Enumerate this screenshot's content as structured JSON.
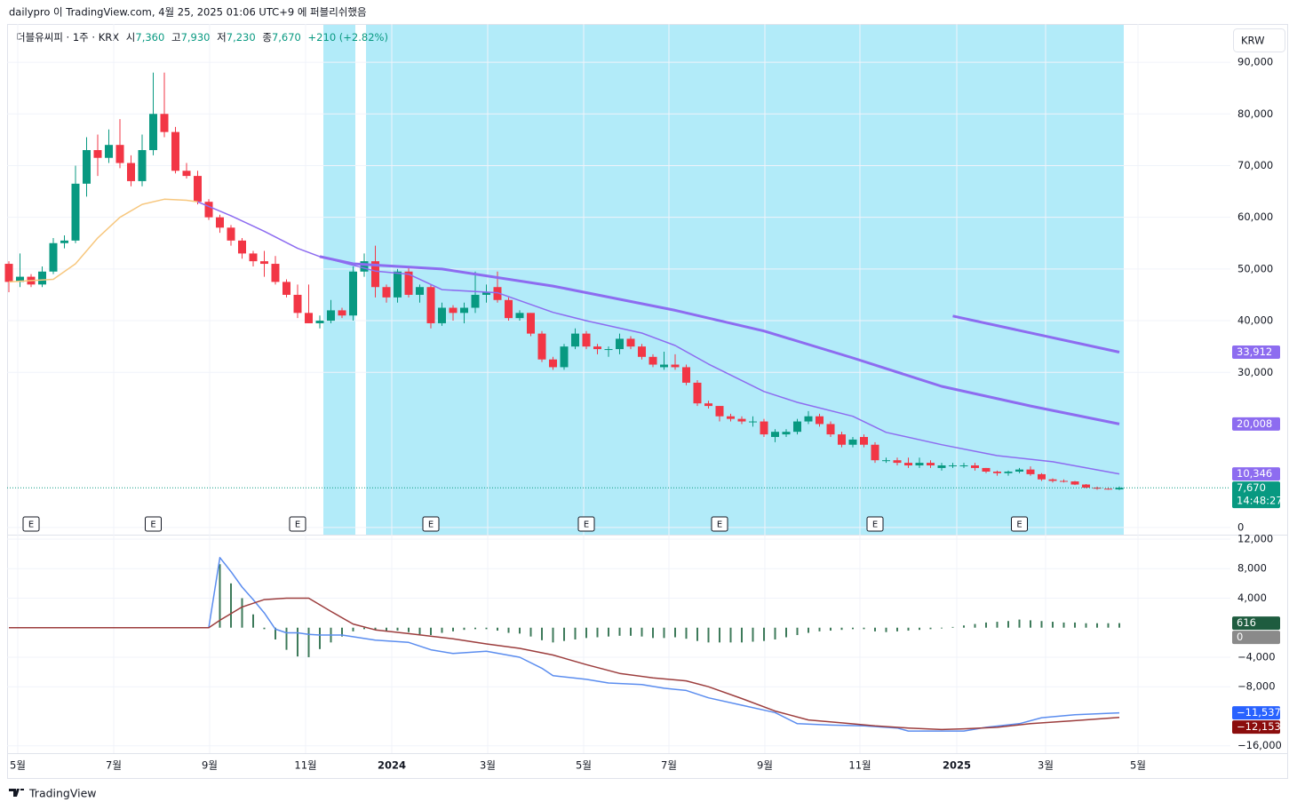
{
  "header": {
    "publisher": "dailypro 이 TradingView.com, 4월 25, 2025 01:06 UTC+9 에 퍼블리쉬했음",
    "symbol": "더블유씨피 · 1주 · KRX",
    "ohlc": [
      {
        "label": "시",
        "value": "7,360"
      },
      {
        "label": "고",
        "value": "7,930"
      },
      {
        "label": "저",
        "value": "7,230"
      },
      {
        "label": "종",
        "value": "7,670"
      }
    ],
    "change": "+210 (+2.82%)",
    "currency": "KRW"
  },
  "chart_data": [
    {
      "type": "candlestick",
      "up_color": "#089981",
      "down_color": "#f23645",
      "xlim": [
        -0.16,
        110
      ],
      "ylim": [
        -1400,
        97400
      ],
      "yticks": [
        {
          "value": 90000,
          "label": "90,000"
        },
        {
          "value": 80000,
          "label": "80,000"
        },
        {
          "value": 70000,
          "label": "70,000"
        },
        {
          "value": 60000,
          "label": "60,000"
        },
        {
          "value": 50000,
          "label": "50,000"
        },
        {
          "value": 40000,
          "label": "40,000"
        },
        {
          "value": 30000,
          "label": "30,000"
        },
        0
      ],
      "candles": [
        [
          51000,
          51500,
          45500,
          47500
        ],
        [
          47500,
          53000,
          46500,
          48500
        ],
        [
          48500,
          49000,
          46500,
          47000
        ],
        [
          47000,
          50500,
          46500,
          49500
        ],
        [
          49500,
          56000,
          49000,
          55000
        ],
        [
          55000,
          56500,
          54000,
          55500
        ],
        [
          55500,
          70000,
          55000,
          66500
        ],
        [
          66500,
          75500,
          64000,
          73000
        ],
        [
          73000,
          76000,
          68000,
          71500
        ],
        [
          71500,
          77000,
          70500,
          74000
        ],
        [
          74000,
          79000,
          69500,
          70500
        ],
        [
          70500,
          72000,
          66000,
          67000
        ],
        [
          67000,
          76000,
          66000,
          73000
        ],
        [
          73000,
          88000,
          72000,
          80000
        ],
        [
          80000,
          88000,
          75500,
          76500
        ],
        [
          76500,
          77500,
          68500,
          69000
        ],
        [
          69000,
          70500,
          67500,
          68000
        ],
        [
          68000,
          69000,
          62500,
          63000
        ],
        [
          63000,
          63500,
          59500,
          60000
        ],
        [
          60000,
          60500,
          57000,
          58000
        ],
        [
          58000,
          58500,
          54500,
          55500
        ],
        [
          55500,
          56000,
          52000,
          53000
        ],
        [
          53000,
          53500,
          50500,
          51500
        ],
        [
          51500,
          53500,
          48500,
          51000
        ],
        [
          51000,
          52500,
          47000,
          47500
        ],
        [
          47500,
          48000,
          44500,
          45000
        ],
        [
          45000,
          47000,
          40500,
          41500
        ],
        [
          41500,
          47000,
          39500,
          39500
        ],
        [
          39500,
          41000,
          38500,
          40000
        ],
        [
          40000,
          44000,
          39500,
          42000
        ],
        [
          42000,
          42500,
          40500,
          41000
        ],
        [
          41000,
          50500,
          40000,
          49500
        ],
        [
          49500,
          53000,
          48500,
          51500
        ],
        [
          51500,
          54500,
          44500,
          46500
        ],
        [
          46500,
          47000,
          43500,
          44500
        ],
        [
          44500,
          50000,
          43500,
          49500
        ],
        [
          49500,
          50500,
          44500,
          45000
        ],
        [
          45000,
          47000,
          43500,
          46500
        ],
        [
          46500,
          47000,
          38500,
          39500
        ],
        [
          39500,
          43500,
          39000,
          42500
        ],
        [
          42500,
          43000,
          40000,
          41500
        ],
        [
          41500,
          43500,
          39500,
          42500
        ],
        [
          42500,
          49500,
          41500,
          45000
        ],
        [
          45000,
          47000,
          43500,
          45500
        ],
        [
          46500,
          49500,
          43500,
          44000
        ],
        [
          44000,
          44500,
          40000,
          40500
        ],
        [
          40500,
          42000,
          40000,
          41500
        ],
        [
          41500,
          41500,
          37000,
          37500
        ],
        [
          37500,
          38000,
          32000,
          32500
        ],
        [
          32500,
          33000,
          30500,
          31000
        ],
        [
          31000,
          35500,
          30500,
          35000
        ],
        [
          35000,
          38500,
          34500,
          37500
        ],
        [
          37500,
          38000,
          34500,
          35000
        ],
        [
          35000,
          35500,
          33500,
          34500
        ],
        [
          34500,
          35000,
          33000,
          34500
        ],
        [
          34500,
          37500,
          33500,
          36500
        ],
        [
          36500,
          37000,
          34500,
          35000
        ],
        [
          35000,
          35500,
          32500,
          33000
        ],
        [
          33000,
          33500,
          31000,
          31500
        ],
        [
          31000,
          34000,
          30500,
          31500
        ],
        [
          31500,
          33500,
          30500,
          31000
        ],
        [
          31000,
          31500,
          27500,
          28000
        ],
        [
          28000,
          28500,
          23500,
          24000
        ],
        [
          24000,
          24500,
          23000,
          23500
        ],
        [
          23500,
          23500,
          20500,
          21500
        ],
        [
          21500,
          22000,
          20500,
          21000
        ],
        [
          21000,
          21500,
          20000,
          20500
        ],
        [
          20500,
          21500,
          19500,
          20500
        ],
        [
          20500,
          21000,
          17500,
          18000
        ],
        [
          17500,
          19000,
          16500,
          18500
        ],
        [
          18000,
          19000,
          17500,
          18500
        ],
        [
          18500,
          21000,
          18000,
          20500
        ],
        [
          20500,
          22500,
          20000,
          21500
        ],
        [
          21500,
          22000,
          19500,
          20000
        ],
        [
          20000,
          20500,
          17500,
          18000
        ],
        [
          18000,
          18500,
          15500,
          16000
        ],
        [
          16000,
          17500,
          15500,
          17000
        ],
        [
          17500,
          18000,
          15500,
          16000
        ],
        [
          16000,
          16500,
          12500,
          13000
        ],
        [
          13000,
          13500,
          12500,
          13000
        ],
        [
          13000,
          13500,
          12000,
          12500
        ],
        [
          12500,
          13500,
          11500,
          12000
        ],
        [
          12000,
          13500,
          11500,
          12500
        ],
        [
          12500,
          13000,
          11500,
          12000
        ],
        [
          11500,
          12500,
          11000,
          12000
        ],
        [
          12000,
          12500,
          11500,
          12000
        ],
        [
          12000,
          12500,
          11500,
          12000
        ],
        [
          12000,
          12500,
          11000,
          11500
        ],
        [
          11500,
          11500,
          10500,
          10800
        ],
        [
          10800,
          11000,
          10000,
          10500
        ],
        [
          10500,
          11000,
          10000,
          10800
        ],
        [
          10800,
          11500,
          10500,
          11200
        ],
        [
          11200,
          11800,
          10000,
          10300
        ],
        [
          10300,
          10500,
          9000,
          9300
        ],
        [
          9300,
          9500,
          8700,
          9000
        ],
        [
          9000,
          9300,
          8700,
          8900
        ],
        [
          8900,
          9000,
          8200,
          8300
        ],
        [
          8300,
          8400,
          7600,
          7700
        ],
        [
          7700,
          7900,
          7300,
          7500
        ],
        [
          7500,
          7800,
          7300,
          7460
        ],
        [
          7360,
          7930,
          7230,
          7670
        ]
      ],
      "lines": [
        {
          "color": "#f7c77e",
          "width": 1.5,
          "x": [
            0,
            4,
            6,
            8,
            10,
            12,
            14,
            16,
            17
          ],
          "values": [
            47500,
            48000,
            51000,
            56000,
            60000,
            62500,
            63500,
            63300,
            63000
          ]
        },
        {
          "color": "#8d6cf0",
          "width": 1.5,
          "x": [
            17,
            20,
            23,
            26,
            28,
            33,
            36,
            39,
            44,
            49,
            52,
            57,
            60,
            63,
            68,
            71,
            76,
            79,
            84,
            89,
            94,
            100
          ],
          "values": [
            63000,
            60300,
            57300,
            54000,
            52400,
            49600,
            49000,
            46000,
            45400,
            41600,
            40000,
            37600,
            35200,
            31600,
            26300,
            24200,
            21500,
            18400,
            16000,
            13900,
            12700,
            10346
          ]
        },
        {
          "color": "#8d6cf0",
          "width": 3,
          "x": [
            28,
            31,
            39,
            49,
            60,
            68,
            76,
            84,
            92,
            100
          ],
          "values": [
            52400,
            51000,
            50000,
            46700,
            42000,
            38000,
            32800,
            27300,
            23500,
            20008
          ]
        },
        {
          "color": "#8d6cf0",
          "width": 3,
          "x": [
            85,
            100
          ],
          "values": [
            40900,
            33912
          ]
        }
      ],
      "earnings": {
        "label": "E",
        "x": [
          2,
          13,
          26,
          38,
          52,
          64,
          78,
          91
        ]
      },
      "price_labels": [
        {
          "value": 33912,
          "label": "33,912",
          "color": "#8d6cf0"
        },
        {
          "value": 20008,
          "label": "20,008",
          "color": "#8d6cf0"
        },
        {
          "value": 10346,
          "label": "10,346",
          "color": "#8d6cf0"
        },
        {
          "value": 7670,
          "label": "7,670",
          "sublabel": "14:48:27",
          "color": "#089981",
          "guide": true
        }
      ]
    },
    {
      "type": "macd",
      "xlim": [
        -0.16,
        110
      ],
      "ylim": [
        -17000,
        12600
      ],
      "yticks": [
        {
          "value": 12000,
          "label": "12,000"
        },
        {
          "value": 8000,
          "label": "8,000"
        },
        {
          "value": 4000,
          "label": "4,000"
        },
        {
          "value": -4000,
          "label": "−4,000"
        },
        {
          "value": -8000,
          "label": "−8,000"
        },
        {
          "value": -16000,
          "label": "−16,000"
        }
      ],
      "xticks": [
        {
          "value": 0.8,
          "label": "5월"
        },
        {
          "value": 9.44,
          "label": "7월"
        },
        {
          "value": 18.08,
          "label": "9월"
        },
        {
          "value": 26.72,
          "label": "11월"
        },
        {
          "value": 34.48,
          "label": "2024"
        },
        {
          "value": 43.12,
          "label": "3월"
        },
        {
          "value": 51.76,
          "label": "5월"
        },
        {
          "value": 59.44,
          "label": "7월"
        },
        {
          "value": 68.08,
          "label": "9월"
        },
        {
          "value": 76.64,
          "label": "11월"
        },
        {
          "value": 85.36,
          "label": "2025"
        },
        {
          "value": 93.36,
          "label": "3월"
        },
        {
          "value": 101.68,
          "label": "5월"
        }
      ],
      "histogram": {
        "color": "#3d7a5a",
        "values": [
          null,
          null,
          null,
          null,
          null,
          null,
          null,
          null,
          null,
          null,
          null,
          null,
          null,
          null,
          null,
          null,
          null,
          null,
          null,
          8600,
          6000,
          4000,
          1800,
          -200,
          -1600,
          -3000,
          -3900,
          -4000,
          -2900,
          -2000,
          -1200,
          -500,
          -200,
          -300,
          -500,
          -400,
          -600,
          -900,
          -1000,
          -700,
          -500,
          -300,
          -200,
          -200,
          -400,
          -700,
          -800,
          -1200,
          -1700,
          -2000,
          -1800,
          -1600,
          -1400,
          -1300,
          -1200,
          -1100,
          -1100,
          -1200,
          -1400,
          -1400,
          -1300,
          -1500,
          -1800,
          -2000,
          -2000,
          -2000,
          -2000,
          -1900,
          -1800,
          -1600,
          -1300,
          -1000,
          -700,
          -500,
          -400,
          -300,
          -200,
          -200,
          -500,
          -600,
          -500,
          -400,
          -300,
          -200,
          -100,
          100,
          300,
          500,
          700,
          800,
          900,
          1100,
          1000,
          900,
          800,
          700,
          700,
          600,
          600,
          600,
          616
        ]
      },
      "lines": [
        {
          "color": "#5b8def",
          "width": 1.5,
          "x": [
            0,
            18,
            19,
            20,
            21,
            22,
            23,
            24,
            25,
            26,
            27,
            28,
            30,
            33,
            36,
            38,
            40,
            43,
            46,
            48,
            49,
            52,
            54,
            57,
            59,
            61,
            63,
            66,
            69,
            71,
            74,
            77,
            80,
            81,
            84,
            86,
            88,
            91,
            93,
            96,
            100
          ],
          "values": [
            0,
            0,
            9500,
            7600,
            5500,
            3800,
            2000,
            -200,
            -700,
            -700,
            -900,
            -1000,
            -1000,
            -1700,
            -2000,
            -3000,
            -3500,
            -3200,
            -4000,
            -5500,
            -6500,
            -7000,
            -7500,
            -7700,
            -8200,
            -8500,
            -9500,
            -10500,
            -11500,
            -13000,
            -13200,
            -13300,
            -13600,
            -14000,
            -14000,
            -14000,
            -13500,
            -13000,
            -12200,
            -11800,
            -11537
          ]
        },
        {
          "color": "#9c3d3d",
          "width": 1.5,
          "x": [
            0,
            18,
            19,
            21,
            23,
            25,
            27,
            29,
            31,
            33,
            36,
            40,
            43,
            46,
            49,
            52,
            55,
            58,
            61,
            63,
            66,
            69,
            72,
            75,
            78,
            81,
            84,
            86,
            89,
            92,
            96,
            100
          ],
          "values": [
            0,
            0,
            1000,
            2800,
            3800,
            4000,
            4000,
            2200,
            500,
            -300,
            -800,
            -1500,
            -2200,
            -2800,
            -3700,
            -5000,
            -6200,
            -6800,
            -7200,
            -8000,
            -9600,
            -11300,
            -12500,
            -12900,
            -13300,
            -13600,
            -13800,
            -13700,
            -13500,
            -13000,
            -12600,
            -12153
          ]
        }
      ],
      "price_labels": [
        {
          "value": 616,
          "label": "616",
          "color": "#1e5c3f"
        },
        {
          "value": 0,
          "label": "0",
          "color": "#8a8a8a"
        },
        {
          "value": -11537,
          "label": "−11,537",
          "color": "#2962ff"
        },
        {
          "value": -12153,
          "label": "−12,153",
          "color": "#8b0d0d"
        }
      ]
    }
  ],
  "footer": {
    "brand": "TradingView"
  }
}
